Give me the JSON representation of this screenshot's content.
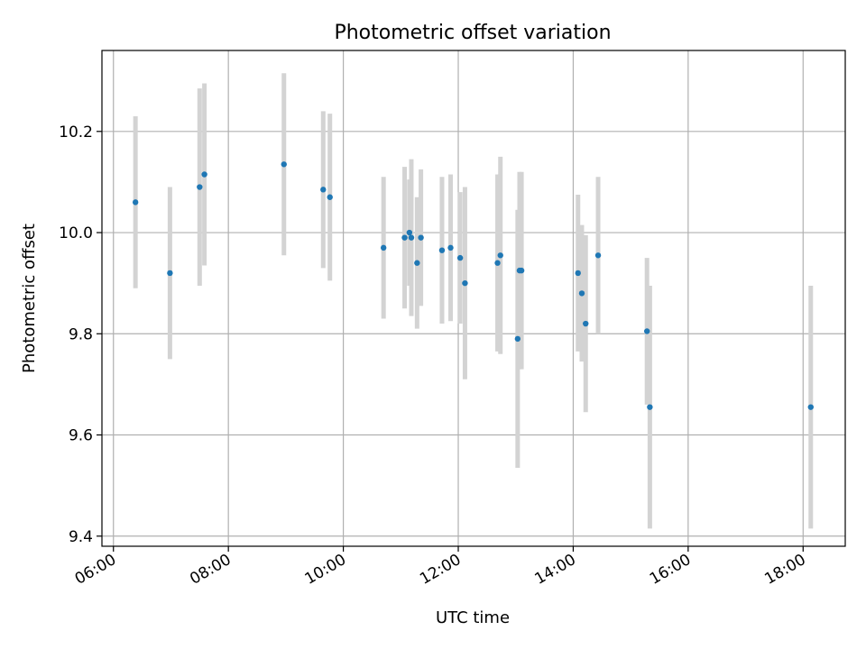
{
  "chart_data": {
    "type": "scatter",
    "title": "Photometric offset variation",
    "xlabel": "UTC time",
    "ylabel": "Photometric offset",
    "x_unit": "UTC time (HH:MM)",
    "xlim": [
      "05:48",
      "18:44"
    ],
    "ylim": [
      9.38,
      10.36
    ],
    "x_ticks": [
      "06:00",
      "08:00",
      "10:00",
      "12:00",
      "14:00",
      "16:00",
      "18:00"
    ],
    "y_ticks": [
      9.4,
      9.6,
      9.8,
      10.0,
      10.2
    ],
    "y_tick_labels": [
      "9.4",
      "9.6",
      "9.8",
      "10.0",
      "10.2"
    ],
    "grid": true,
    "legend": "none",
    "colors": {
      "marker": "#1f77b4",
      "errorbar": "#d3d3d3",
      "grid": "#b0b0b0",
      "axes": "#000000"
    },
    "points": [
      {
        "x": "06:23",
        "y": 10.06,
        "err": 0.17
      },
      {
        "x": "06:59",
        "y": 9.92,
        "err": 0.17
      },
      {
        "x": "07:30",
        "y": 10.09,
        "err": 0.195
      },
      {
        "x": "07:35",
        "y": 10.115,
        "err": 0.18
      },
      {
        "x": "08:58",
        "y": 10.135,
        "err": 0.18
      },
      {
        "x": "09:39",
        "y": 10.085,
        "err": 0.155
      },
      {
        "x": "09:46",
        "y": 10.07,
        "err": 0.165
      },
      {
        "x": "10:42",
        "y": 9.97,
        "err": 0.14
      },
      {
        "x": "11:04",
        "y": 9.99,
        "err": 0.14
      },
      {
        "x": "11:09",
        "y": 10.0,
        "err": 0.105
      },
      {
        "x": "11:11",
        "y": 9.99,
        "err": 0.155
      },
      {
        "x": "11:17",
        "y": 9.94,
        "err": 0.13
      },
      {
        "x": "11:21",
        "y": 9.99,
        "err": 0.135
      },
      {
        "x": "11:43",
        "y": 9.965,
        "err": 0.145
      },
      {
        "x": "11:52",
        "y": 9.97,
        "err": 0.145
      },
      {
        "x": "12:02",
        "y": 9.95,
        "err": 0.13
      },
      {
        "x": "12:07",
        "y": 9.9,
        "err": 0.19
      },
      {
        "x": "12:41",
        "y": 9.94,
        "err": 0.175
      },
      {
        "x": "12:44",
        "y": 9.955,
        "err": 0.195
      },
      {
        "x": "13:02",
        "y": 9.79,
        "err": 0.255
      },
      {
        "x": "13:04",
        "y": 9.925,
        "err": 0.195
      },
      {
        "x": "13:06",
        "y": 9.925,
        "err": 0.195
      },
      {
        "x": "14:05",
        "y": 9.92,
        "err": 0.155
      },
      {
        "x": "14:09",
        "y": 9.88,
        "err": 0.135
      },
      {
        "x": "14:13",
        "y": 9.82,
        "err": 0.175
      },
      {
        "x": "14:26",
        "y": 9.955,
        "err": 0.155
      },
      {
        "x": "15:17",
        "y": 9.805,
        "err": 0.145
      },
      {
        "x": "15:20",
        "y": 9.655,
        "err": 0.24
      },
      {
        "x": "18:08",
        "y": 9.655,
        "err": 0.24
      }
    ]
  }
}
